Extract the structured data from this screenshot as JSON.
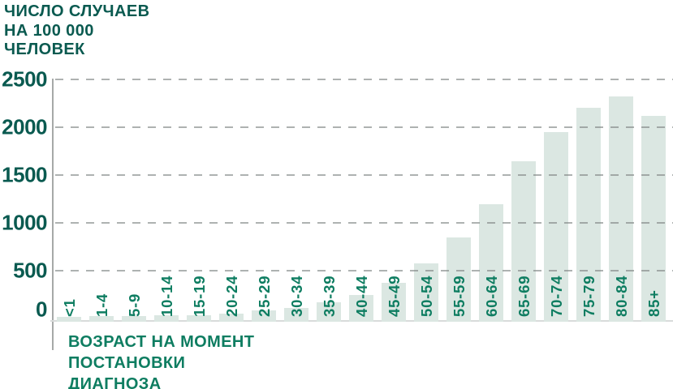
{
  "chart_data": {
    "type": "bar",
    "title": "ЧИСЛО СЛУЧАЕВ\nНА 100 000\nЧЕЛОВЕК",
    "xlabel": "ВОЗРАСТ НА МОМЕНТ\nПОСТАНОВКИ\nДИАГНОЗА",
    "ylabel": "",
    "categories": [
      "<1",
      "1-4",
      "5-9",
      "10-14",
      "15-19",
      "20-24",
      "25-29",
      "30-34",
      "35-39",
      "40-44",
      "45-49",
      "50-54",
      "55-59",
      "60-64",
      "65-69",
      "70-74",
      "75-79",
      "80-84",
      "85+"
    ],
    "values": [
      15,
      20,
      22,
      28,
      33,
      48,
      80,
      108,
      165,
      245,
      370,
      570,
      845,
      1190,
      1640,
      1950,
      2200,
      2320,
      2115
    ],
    "yticks": [
      0,
      500,
      1000,
      1500,
      2000,
      2500
    ],
    "ylim": [
      0,
      2500
    ],
    "grid": "horizontal-dashed",
    "legend": "none",
    "colors": {
      "title_text": "#0a5a50",
      "tick_text": "#0a5a50",
      "category_text": "#0e7d61",
      "xlabel_text": "#0e7d61",
      "bar_fill": "#dbe7e2",
      "gridline": "#b0b3b2",
      "y_axis_line": "#a6a9a8",
      "x_axis_line": "#d8dbda",
      "background": "#ffffff"
    }
  }
}
